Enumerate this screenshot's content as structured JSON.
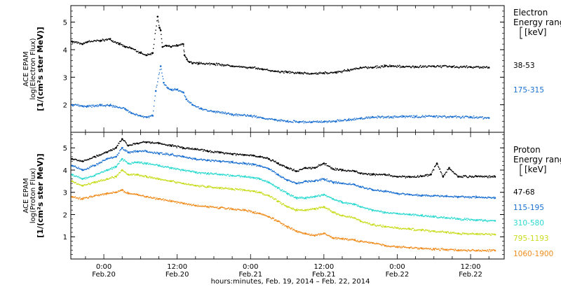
{
  "window": {
    "title": ""
  },
  "figure": {
    "xlabel": "hours:minutes, Feb. 19, 2014 – Feb. 22, 2014",
    "x_tick_labels": [
      {
        "time": "0:00",
        "date": "Feb.20"
      },
      {
        "time": "12:00",
        "date": "Feb.20"
      },
      {
        "time": "0:00",
        "date": "Feb.21"
      },
      {
        "time": "12:00",
        "date": "Feb.21"
      },
      {
        "time": "0:00",
        "date": "Feb.22"
      },
      {
        "time": "12:00",
        "date": "Feb.22"
      }
    ]
  },
  "chart_data": [
    {
      "type": "scatter",
      "panel": "electron",
      "ylabel": [
        "ACE EPAM",
        "log(Electron Flux)",
        "[1/(cm²s ster MeV)]"
      ],
      "ylim": [
        1.0,
        5.6
      ],
      "yticks": [
        2,
        3,
        4,
        5
      ],
      "x_unit": "hours since Feb 19 2014 00:00",
      "xlim": [
        18.6,
        89.5
      ],
      "legend_title": [
        "Electron",
        "Energy range",
        "[keV]"
      ],
      "series": [
        {
          "name": "38-53",
          "color": "#000000",
          "x": [
            18.8,
            20.5,
            21.3,
            23.5,
            25,
            26.5,
            27.5,
            28.5,
            30,
            31,
            32,
            32.8,
            33.1,
            33.3,
            33.6,
            34.2,
            35,
            36,
            37,
            37.2,
            37.6,
            38,
            38.5,
            39.5,
            42,
            45,
            48,
            50,
            52,
            54,
            56,
            58,
            60,
            62,
            64,
            66,
            68,
            70,
            71,
            73,
            75,
            78,
            81,
            84,
            87
          ],
          "y": [
            4.3,
            4.2,
            4.28,
            4.33,
            4.38,
            4.22,
            4.1,
            4.05,
            3.88,
            3.8,
            3.88,
            5.2,
            4.8,
            4.7,
            4.1,
            4.15,
            4.1,
            4.15,
            4.2,
            3.8,
            3.65,
            3.55,
            3.5,
            3.5,
            3.48,
            3.4,
            3.35,
            3.28,
            3.22,
            3.18,
            3.15,
            3.13,
            3.15,
            3.18,
            3.25,
            3.35,
            3.35,
            3.4,
            3.4,
            3.38,
            3.38,
            3.4,
            3.38,
            3.37,
            3.35
          ]
        },
        {
          "name": "175-315",
          "color": "#1a6fd1",
          "x": [
            18.8,
            20.5,
            21.3,
            23.5,
            25,
            27.5,
            28.5,
            30,
            31,
            32,
            32.5,
            33.3,
            33.8,
            34.5,
            35,
            36,
            37,
            37.5,
            38.5,
            40,
            42,
            45,
            48,
            50,
            52,
            54,
            56,
            58,
            60,
            62,
            64,
            66,
            68,
            71,
            73,
            75,
            78,
            81,
            84,
            87
          ],
          "y": [
            2.0,
            1.95,
            1.95,
            1.98,
            1.98,
            1.85,
            1.7,
            1.6,
            1.55,
            1.6,
            2.5,
            3.4,
            2.8,
            2.6,
            2.55,
            2.55,
            2.45,
            2.2,
            2.0,
            1.85,
            1.75,
            1.65,
            1.6,
            1.52,
            1.45,
            1.4,
            1.38,
            1.37,
            1.38,
            1.4,
            1.45,
            1.5,
            1.55,
            1.55,
            1.58,
            1.57,
            1.58,
            1.56,
            1.55,
            1.52
          ]
        }
      ]
    },
    {
      "type": "scatter",
      "panel": "proton",
      "ylabel": [
        "ACE EPAM",
        "log(Proton Flux)",
        "[1/(cm²s ster MeV)]"
      ],
      "ylim": [
        0.0,
        5.7
      ],
      "yticks": [
        1,
        2,
        3,
        4,
        5
      ],
      "x_unit": "hours since Feb 19 2014 00:00",
      "xlim": [
        18.6,
        89.5
      ],
      "legend_title": [
        "Proton",
        "Energy range",
        "[keV]"
      ],
      "series": [
        {
          "name": "47-68",
          "color": "#000000",
          "x": [
            18.8,
            20.5,
            22.5,
            24.5,
            26,
            27,
            28,
            29.5,
            31,
            33,
            35,
            37,
            39,
            41,
            43,
            45,
            47,
            48.5,
            49.5,
            51,
            52.5,
            54,
            55.5,
            57,
            58.5,
            60,
            61.5,
            63,
            65,
            66,
            68,
            70,
            72,
            74,
            76,
            77.5,
            78.5,
            79.5,
            80.5,
            82,
            85,
            88
          ],
          "y": [
            4.5,
            4.4,
            4.6,
            4.8,
            5.0,
            5.4,
            5.1,
            5.2,
            5.25,
            5.2,
            5.1,
            5.0,
            4.95,
            4.85,
            4.8,
            4.72,
            4.68,
            4.65,
            4.6,
            4.5,
            4.3,
            4.1,
            3.95,
            4.1,
            4.1,
            4.3,
            4.05,
            4.0,
            3.95,
            3.85,
            3.8,
            3.8,
            3.7,
            3.7,
            3.72,
            3.8,
            4.3,
            3.7,
            4.1,
            3.7,
            3.72,
            3.7
          ]
        },
        {
          "name": "115-195",
          "color": "#1a6fd1",
          "x": [
            18.8,
            20.5,
            22.5,
            24.5,
            26,
            27,
            28,
            29.5,
            31,
            33,
            35,
            37,
            39,
            41,
            43,
            45,
            47,
            48.5,
            49.5,
            51,
            52.5,
            54,
            55.5,
            57,
            58.5,
            60,
            61.5,
            63,
            65,
            66,
            68,
            70,
            72,
            74,
            76,
            78,
            80,
            82,
            85,
            88
          ],
          "y": [
            4.2,
            4.0,
            4.2,
            4.5,
            4.6,
            5.0,
            4.8,
            4.85,
            4.85,
            4.75,
            4.7,
            4.6,
            4.5,
            4.45,
            4.4,
            4.35,
            4.3,
            4.25,
            4.2,
            4.05,
            3.8,
            3.55,
            3.4,
            3.5,
            3.5,
            3.6,
            3.45,
            3.4,
            3.35,
            3.25,
            3.1,
            3.05,
            2.95,
            2.9,
            2.85,
            2.85,
            2.82,
            2.8,
            2.78,
            2.75
          ]
        },
        {
          "name": "310-580",
          "color": "#2ad9d0",
          "x": [
            18.8,
            20.5,
            22.5,
            24.5,
            26,
            27,
            28,
            29.5,
            31,
            33,
            35,
            37,
            39,
            41,
            43,
            45,
            47,
            48.5,
            49.5,
            51,
            52.5,
            54,
            55.5,
            57,
            58.5,
            60,
            61.5,
            63,
            65,
            66,
            68,
            70,
            72,
            74,
            76,
            78,
            80,
            82,
            85,
            88
          ],
          "y": [
            3.8,
            3.6,
            3.75,
            4.0,
            4.15,
            4.5,
            4.3,
            4.35,
            4.3,
            4.2,
            4.1,
            4.0,
            3.9,
            3.85,
            3.8,
            3.75,
            3.7,
            3.65,
            3.6,
            3.45,
            3.2,
            2.95,
            2.75,
            2.75,
            2.8,
            2.9,
            2.7,
            2.55,
            2.45,
            2.35,
            2.2,
            2.1,
            2.05,
            2.0,
            1.95,
            1.9,
            1.85,
            1.8,
            1.75,
            1.72
          ]
        },
        {
          "name": "795-1193",
          "color": "#c8dc1e",
          "x": [
            18.8,
            20.5,
            22.5,
            24.5,
            26,
            27,
            28,
            29.5,
            31,
            33,
            35,
            37,
            39,
            41,
            43,
            45,
            47,
            48.5,
            49.5,
            51,
            52.5,
            54,
            55.5,
            57,
            58.5,
            60,
            61.5,
            63,
            65,
            66,
            68,
            70,
            72,
            74,
            76,
            78,
            80,
            82,
            85,
            88
          ],
          "y": [
            3.5,
            3.3,
            3.45,
            3.6,
            3.7,
            4.0,
            3.8,
            3.8,
            3.7,
            3.6,
            3.5,
            3.4,
            3.3,
            3.25,
            3.2,
            3.15,
            3.1,
            3.05,
            3.0,
            2.85,
            2.6,
            2.35,
            2.2,
            2.2,
            2.25,
            2.35,
            2.1,
            1.95,
            1.85,
            1.7,
            1.55,
            1.45,
            1.4,
            1.35,
            1.3,
            1.25,
            1.2,
            1.15,
            1.12,
            1.1
          ]
        },
        {
          "name": "1060-1900",
          "color": "#f08c1e",
          "x": [
            18.8,
            20.5,
            22.5,
            24.5,
            26,
            27,
            28,
            29.5,
            31,
            33,
            35,
            37,
            39,
            41,
            43,
            45,
            47,
            48.5,
            49.5,
            51,
            52.5,
            54,
            55.5,
            57,
            58.5,
            60,
            61.5,
            63,
            65,
            66,
            68,
            70,
            72,
            74,
            76,
            78,
            80,
            82,
            85,
            88
          ],
          "y": [
            2.8,
            2.7,
            2.85,
            2.95,
            3.0,
            3.1,
            2.95,
            2.9,
            2.8,
            2.7,
            2.6,
            2.5,
            2.4,
            2.35,
            2.3,
            2.25,
            2.2,
            2.1,
            2.05,
            1.9,
            1.7,
            1.45,
            1.25,
            1.15,
            1.05,
            1.15,
            0.95,
            0.9,
            0.85,
            0.8,
            0.72,
            0.6,
            0.55,
            0.5,
            0.48,
            0.45,
            0.42,
            0.4,
            0.38,
            0.38
          ]
        }
      ]
    }
  ]
}
